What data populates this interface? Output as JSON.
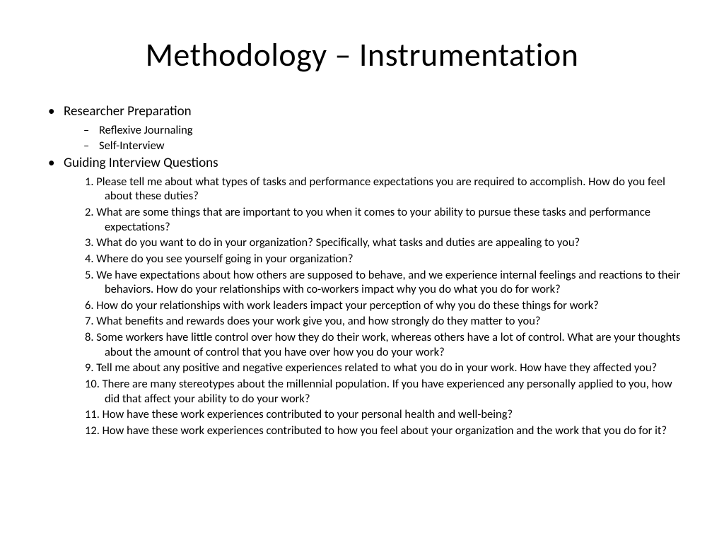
{
  "title": "Methodology – Instrumentation",
  "section1": {
    "heading": "Researcher Preparation",
    "items": [
      "Reflexive Journaling",
      "Self-Interview"
    ]
  },
  "section2": {
    "heading": "Guiding Interview Questions",
    "questions": [
      "Please tell me about what types of tasks and performance expectations you are required to accomplish.  How do you feel about these duties?",
      " What are some things that are important to you when it comes to your ability to pursue these tasks and performance expectations?",
      " What do you want to do in your organization? Specifically, what tasks and duties are appealing to you?",
      " Where do you see yourself going in your organization?",
      " We have expectations about how others are supposed to behave, and we experience internal feelings and reactions to their behaviors.  How do your relationships with co-workers impact why you do what you do for work?",
      " How do your relationships with work leaders impact your perception of why you do these things for work?",
      " What benefits and rewards does your work give you, and how strongly do they matter to you?",
      " Some workers have little control over how they do their work, whereas others have a lot of control.  What are your thoughts about the amount of control that you have over how you do your work?",
      " Tell me about any positive and negative experiences related to what you do in your work.  How have they affected you?",
      "There are many stereotypes about the millennial population.  If you have experienced any personally applied to you, how did that affect your ability to do your work?",
      "How have these work experiences contributed to your personal health and well-being?",
      "How have these work experiences contributed to how you feel about your organization and the work that you do for it?"
    ]
  }
}
